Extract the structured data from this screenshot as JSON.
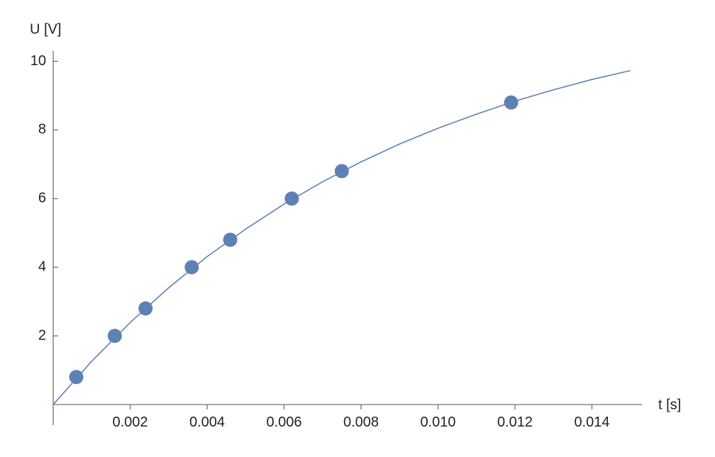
{
  "chart_data": {
    "type": "scatter",
    "xlabel": "t [s]",
    "ylabel": "U [V]",
    "xlim": [
      0,
      0.0153
    ],
    "ylim": [
      -0.6,
      10.3
    ],
    "xticks": [
      0.002,
      0.004,
      0.006,
      0.008,
      {
        "value": 0.01,
        "label": "0.010"
      },
      0.012,
      0.014
    ],
    "yticks": [
      2,
      4,
      6,
      8,
      10
    ],
    "series": [
      {
        "type": "line",
        "color": "#5e81b5",
        "x": [
          0,
          0.001,
          0.002,
          0.003,
          0.004,
          0.005,
          0.006,
          0.007,
          0.008,
          0.009,
          0.01,
          0.011,
          0.012,
          0.013,
          0.014,
          0.015
        ],
        "values": [
          0,
          1.26,
          2.39,
          3.4,
          4.31,
          5.11,
          5.84,
          6.49,
          7.07,
          7.59,
          8.05,
          8.46,
          8.84,
          9.17,
          9.47,
          9.73
        ]
      },
      {
        "type": "scatter",
        "color": "#5e81b5",
        "x": [
          0.0006,
          0.0016,
          0.0024,
          0.0036,
          0.0046,
          0.0062,
          0.0075,
          0.0119
        ],
        "values": [
          0.8,
          2.0,
          2.8,
          4.0,
          4.8,
          6.0,
          6.8,
          8.8
        ]
      }
    ]
  }
}
